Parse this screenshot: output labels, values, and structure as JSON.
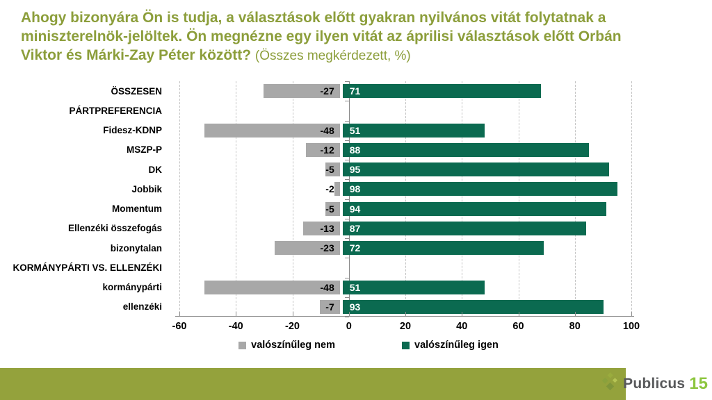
{
  "slide": {
    "title": {
      "line1": "Ahogy bizonyára Ön is tudja, a választások előtt gyakran nyilvános vitát folytatnak a",
      "line2": "miniszterelnök-jelöltek. Ön megnézne egy ilyen vitát az áprilisi választások előtt Orbán",
      "line3": "Viktor és Márki-Zay Péter között?",
      "suffix": "(Összes megkérdezett, %)",
      "color": "#8C9E3B"
    },
    "footer": {
      "bar_color": "#94A23C",
      "brand": "Publicus",
      "badge": "15"
    }
  },
  "chart_data": {
    "type": "bar",
    "orientation": "horizontal",
    "diverging": true,
    "title": "Ön megnézne egy ilyen vitát az áprilisi választások előtt Orbán Viktor és Márki-Zay Péter között? (Összes megkérdezett, %)",
    "categories": [
      "ÖSSZESEN",
      "PÁRTPREFERENCIA",
      "Fidesz-KDNP",
      "MSZP-P",
      "DK",
      "Jobbik",
      "Momentum",
      "Ellenzéki összefogás",
      "bizonytalan",
      "KORMÁNYPÁRTI VS. ELLENZÉKI",
      "kormánypárti",
      "ellenzéki"
    ],
    "header_rows": [
      1,
      9
    ],
    "series": [
      {
        "name": "valószínűleg nem",
        "color": "#A8A8A8",
        "values": [
          -27,
          null,
          -48,
          -12,
          -5,
          -2,
          -5,
          -13,
          -23,
          null,
          -48,
          -7
        ]
      },
      {
        "name": "valószínűleg igen",
        "color": "#0B6A50",
        "values": [
          71,
          null,
          51,
          88,
          95,
          98,
          94,
          87,
          72,
          null,
          51,
          93
        ]
      }
    ],
    "xlim": [
      -60,
      100
    ],
    "xticks": [
      -60,
      -40,
      -20,
      0,
      20,
      40,
      60,
      80,
      100
    ],
    "grid": "dashed-vertical",
    "legend_position": "bottom",
    "value_labels": "inside-end"
  }
}
